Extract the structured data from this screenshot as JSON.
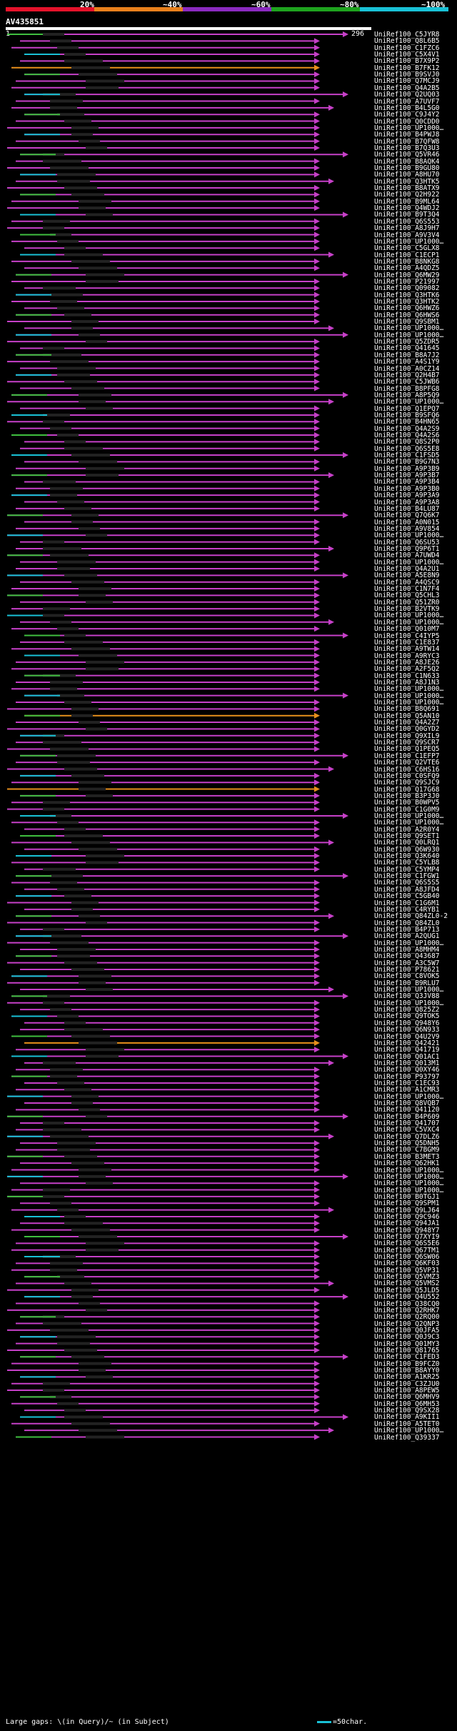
{
  "legend": {
    "labels": [
      "20%",
      "~40%",
      "~60%",
      "~80%",
      "~100%"
    ],
    "colors": [
      "#e5122a",
      "#e8801c",
      "#8b2ac0",
      "#1ea31e",
      "#19c1d6"
    ]
  },
  "query": {
    "name": "AV435851",
    "start": "1",
    "end": "296"
  },
  "footer": {
    "gaps_note": "Large gaps: \\(in Query)/~ (in Subject)",
    "scale_note": "=50char."
  },
  "colors": {
    "magenta": "#c640c8",
    "green": "#3fbf3f",
    "cyan": "#19c1d6",
    "orange": "#e8901c"
  },
  "hits": [
    {
      "label": "UniRef100_C5JYR8",
      "color": "magenta"
    },
    {
      "label": "UniRef100_Q8L6B5",
      "color": "magenta"
    },
    {
      "label": "UniRef100_C1FZC6",
      "color": "magenta"
    },
    {
      "label": "UniRef100_C5X4V1",
      "color": "magenta"
    },
    {
      "label": "UniRef100_B7X9P2",
      "color": "magenta"
    },
    {
      "label": "UniRef100_B7FK12",
      "color": "orange"
    },
    {
      "label": "UniRef100_B9SVJ0",
      "color": "magenta"
    },
    {
      "label": "UniRef100_Q7MCJ9",
      "color": "magenta"
    },
    {
      "label": "UniRef100_Q4A2B5",
      "color": "magenta"
    },
    {
      "label": "UniRef100_Q2UQ03",
      "color": "magenta"
    },
    {
      "label": "UniRef100_A7UVF7",
      "color": "magenta"
    },
    {
      "label": "UniRef100_B4L5G0",
      "color": "magenta"
    },
    {
      "label": "UniRef100_C9J4Y2",
      "color": "magenta"
    },
    {
      "label": "UniRef100_Q0CDD0",
      "color": "magenta"
    },
    {
      "label": "UniRef100_UP1000…",
      "color": "magenta"
    },
    {
      "label": "UniRef100_B4PWJ8",
      "color": "magenta"
    },
    {
      "label": "UniRef100_B7QFW8",
      "color": "magenta"
    },
    {
      "label": "UniRef100_B7Q3U3",
      "color": "magenta"
    },
    {
      "label": "UniRef100_Q5VR46",
      "color": "magenta"
    },
    {
      "label": "UniRef100_B8AQK4",
      "color": "magenta"
    },
    {
      "label": "UniRef100_B9GU80",
      "color": "magenta"
    },
    {
      "label": "UniRef100_A8HU70",
      "color": "magenta"
    },
    {
      "label": "UniRef100_Q3HTK5",
      "color": "magenta"
    },
    {
      "label": "UniRef100_B8ATX9",
      "color": "magenta"
    },
    {
      "label": "UniRef100_Q2H922",
      "color": "magenta"
    },
    {
      "label": "UniRef100_B9ML64",
      "color": "magenta"
    },
    {
      "label": "UniRef100_Q4WDJ2",
      "color": "magenta"
    },
    {
      "label": "UniRef100_B9T3Q4",
      "color": "magenta"
    },
    {
      "label": "UniRef100_Q6S553",
      "color": "magenta"
    },
    {
      "label": "UniRef100_A8J9H7",
      "color": "magenta"
    },
    {
      "label": "UniRef100_A9V3V4",
      "color": "magenta"
    },
    {
      "label": "UniRef100_UP1000…",
      "color": "magenta"
    },
    {
      "label": "UniRef100_C5GLX8",
      "color": "magenta"
    },
    {
      "label": "UniRef100_C1ECP1",
      "color": "magenta"
    },
    {
      "label": "UniRef100_B8NKG8",
      "color": "magenta"
    },
    {
      "label": "UniRef100_A4QDZ5",
      "color": "magenta"
    },
    {
      "label": "UniRef100_Q6MW29",
      "color": "magenta"
    },
    {
      "label": "UniRef100_P21997",
      "color": "magenta"
    },
    {
      "label": "UniRef100_Q09082",
      "color": "magenta"
    },
    {
      "label": "UniRef100_Q3HTK6",
      "color": "magenta"
    },
    {
      "label": "UniRef100_Q3HTK2",
      "color": "magenta"
    },
    {
      "label": "UniRef100_Q6HWZ6",
      "color": "magenta"
    },
    {
      "label": "UniRef100_Q6HWS6",
      "color": "magenta"
    },
    {
      "label": "UniRef100_Q9SBM1",
      "color": "magenta"
    },
    {
      "label": "UniRef100_UP1000…",
      "color": "magenta"
    },
    {
      "label": "UniRef100_UP1000…",
      "color": "magenta"
    },
    {
      "label": "UniRef100_Q5ZDR5",
      "color": "magenta"
    },
    {
      "label": "UniRef100_Q41645",
      "color": "magenta"
    },
    {
      "label": "UniRef100_B8A7J2",
      "color": "magenta"
    },
    {
      "label": "UniRef100_A4S1Y9",
      "color": "magenta"
    },
    {
      "label": "UniRef100_A0CZ14",
      "color": "magenta"
    },
    {
      "label": "UniRef100_Q2H4B7",
      "color": "magenta"
    },
    {
      "label": "UniRef100_C5JWB6",
      "color": "magenta"
    },
    {
      "label": "UniRef100_B8PFG8",
      "color": "magenta"
    },
    {
      "label": "UniRef100_A8P5Q9",
      "color": "magenta"
    },
    {
      "label": "UniRef100_UP1000…",
      "color": "magenta"
    },
    {
      "label": "UniRef100_Q1EPQ7",
      "color": "magenta"
    },
    {
      "label": "UniRef100_B9SFQ6",
      "color": "magenta"
    },
    {
      "label": "UniRef100_B4HN65",
      "color": "magenta"
    },
    {
      "label": "UniRef100_Q4A2S9",
      "color": "magenta"
    },
    {
      "label": "UniRef100_Q4A2S6",
      "color": "magenta"
    },
    {
      "label": "UniRef100_Q8S2P0",
      "color": "magenta"
    },
    {
      "label": "UniRef100_Q6S5E8",
      "color": "magenta"
    },
    {
      "label": "UniRef100_C1FSD5",
      "color": "magenta"
    },
    {
      "label": "UniRef100_B9G7N3",
      "color": "magenta"
    },
    {
      "label": "UniRef100_A9P3B9",
      "color": "magenta"
    },
    {
      "label": "UniRef100_A9P3B7",
      "color": "magenta"
    },
    {
      "label": "UniRef100_A9P3B4",
      "color": "magenta"
    },
    {
      "label": "UniRef100_A9P3B0",
      "color": "magenta"
    },
    {
      "label": "UniRef100_A9P3A9",
      "color": "magenta"
    },
    {
      "label": "UniRef100_A9P3A8",
      "color": "magenta"
    },
    {
      "label": "UniRef100_B4LU87",
      "color": "magenta"
    },
    {
      "label": "UniRef100_Q7Q6K7",
      "color": "magenta"
    },
    {
      "label": "UniRef100_A0N015",
      "color": "magenta"
    },
    {
      "label": "UniRef100_A9V854",
      "color": "magenta"
    },
    {
      "label": "UniRef100_UP1000…",
      "color": "magenta"
    },
    {
      "label": "UniRef100_Q6SU53",
      "color": "magenta"
    },
    {
      "label": "UniRef100_Q9P6T1",
      "color": "magenta"
    },
    {
      "label": "UniRef100_A7UWD4",
      "color": "magenta"
    },
    {
      "label": "UniRef100_UP1000…",
      "color": "magenta"
    },
    {
      "label": "UniRef100_Q4A2U1",
      "color": "magenta"
    },
    {
      "label": "UniRef100_A5E8N9",
      "color": "magenta"
    },
    {
      "label": "UniRef100_A4QSC9",
      "color": "magenta"
    },
    {
      "label": "UniRef100_C1N7F4",
      "color": "magenta"
    },
    {
      "label": "UniRef100_Q5CHL3",
      "color": "magenta"
    },
    {
      "label": "UniRef100_Q51ZR0",
      "color": "magenta"
    },
    {
      "label": "UniRef100_B2VTK9",
      "color": "magenta"
    },
    {
      "label": "UniRef100_UP1000…",
      "color": "magenta"
    },
    {
      "label": "UniRef100_UP1000…",
      "color": "magenta"
    },
    {
      "label": "UniRef100_Q010M7",
      "color": "magenta"
    },
    {
      "label": "UniRef100_C4IYP5",
      "color": "magenta"
    },
    {
      "label": "UniRef100_C1E837",
      "color": "magenta"
    },
    {
      "label": "UniRef100_A9TW14",
      "color": "magenta"
    },
    {
      "label": "UniRef100_A9RYC3",
      "color": "magenta"
    },
    {
      "label": "UniRef100_A8JE26",
      "color": "magenta"
    },
    {
      "label": "UniRef100_A2F5Q2",
      "color": "magenta"
    },
    {
      "label": "UniRef100_C1N633",
      "color": "magenta"
    },
    {
      "label": "UniRef100_A8J1N3",
      "color": "magenta"
    },
    {
      "label": "UniRef100_UP1000…",
      "color": "magenta"
    },
    {
      "label": "UniRef100_UP1000…",
      "color": "magenta"
    },
    {
      "label": "UniRef100_UP1000…",
      "color": "magenta"
    },
    {
      "label": "UniRef100_B8Q691",
      "color": "magenta"
    },
    {
      "label": "UniRef100_Q5AN10",
      "color": "orange"
    },
    {
      "label": "UniRef100_Q4A2Z7",
      "color": "magenta"
    },
    {
      "label": "UniRef100_Q0GYD2",
      "color": "magenta"
    },
    {
      "label": "UniRef100_Q9XIL9",
      "color": "magenta"
    },
    {
      "label": "UniRef100_Q9SCR7",
      "color": "magenta"
    },
    {
      "label": "UniRef100_Q1PEQ5",
      "color": "magenta"
    },
    {
      "label": "UniRef100_C1EFP7",
      "color": "magenta"
    },
    {
      "label": "UniRef100_Q2VTE6",
      "color": "magenta"
    },
    {
      "label": "UniRef100_C6HS16",
      "color": "magenta"
    },
    {
      "label": "UniRef100_C0SFQ9",
      "color": "magenta"
    },
    {
      "label": "UniRef100_Q9SJC9",
      "color": "magenta"
    },
    {
      "label": "UniRef100_Q17G68",
      "color": "orange"
    },
    {
      "label": "UniRef100_B3P3J0",
      "color": "magenta"
    },
    {
      "label": "UniRef100_B0WPV5",
      "color": "magenta"
    },
    {
      "label": "UniRef100_C1G0M9",
      "color": "magenta"
    },
    {
      "label": "UniRef100_UP1000…",
      "color": "magenta"
    },
    {
      "label": "UniRef100_UP1000…",
      "color": "magenta"
    },
    {
      "label": "UniRef100_A2R0Y4",
      "color": "magenta"
    },
    {
      "label": "UniRef100_Q9SET1",
      "color": "magenta"
    },
    {
      "label": "UniRef100_Q0LRQ1",
      "color": "magenta"
    },
    {
      "label": "UniRef100_Q6W930",
      "color": "magenta"
    },
    {
      "label": "UniRef100_Q3K640",
      "color": "magenta"
    },
    {
      "label": "UniRef100_C5YLB8",
      "color": "magenta"
    },
    {
      "label": "UniRef100_C5YMP4",
      "color": "magenta"
    },
    {
      "label": "UniRef100_C1FGW1",
      "color": "magenta"
    },
    {
      "label": "UniRef100_Q6S5S5",
      "color": "magenta"
    },
    {
      "label": "UniRef100_A8JFD4",
      "color": "magenta"
    },
    {
      "label": "UniRef100_C5GB40",
      "color": "magenta"
    },
    {
      "label": "UniRef100_C1G6M1",
      "color": "magenta"
    },
    {
      "label": "UniRef100_C4RYB1",
      "color": "magenta"
    },
    {
      "label": "UniRef100_Q84ZL0-2",
      "color": "magenta"
    },
    {
      "label": "UniRef100_Q84ZL0",
      "color": "magenta"
    },
    {
      "label": "UniRef100_B4P713",
      "color": "magenta"
    },
    {
      "label": "UniRef100_A2QUG1",
      "color": "magenta"
    },
    {
      "label": "UniRef100_UP1000…",
      "color": "magenta"
    },
    {
      "label": "UniRef100_A8MHM4",
      "color": "magenta"
    },
    {
      "label": "UniRef100_Q43687",
      "color": "magenta"
    },
    {
      "label": "UniRef100_A3C5W7",
      "color": "magenta"
    },
    {
      "label": "UniRef100_P78621",
      "color": "magenta"
    },
    {
      "label": "UniRef100_C8VOK5",
      "color": "magenta"
    },
    {
      "label": "UniRef100_B9RLU7",
      "color": "magenta"
    },
    {
      "label": "UniRef100_UP1000…",
      "color": "magenta"
    },
    {
      "label": "UniRef100_Q3JV88",
      "color": "magenta"
    },
    {
      "label": "UniRef100_UP1000…",
      "color": "magenta"
    },
    {
      "label": "UniRef100_Q825Z2",
      "color": "magenta"
    },
    {
      "label": "UniRef100_Q9TOK5",
      "color": "magenta"
    },
    {
      "label": "UniRef100_Q948Y6",
      "color": "magenta"
    },
    {
      "label": "UniRef100_Q6N933",
      "color": "magenta"
    },
    {
      "label": "UniRef100_Q4U2V9",
      "color": "magenta"
    },
    {
      "label": "UniRef100_Q42421",
      "color": "orange"
    },
    {
      "label": "UniRef100_Q41719",
      "color": "magenta"
    },
    {
      "label": "UniRef100_Q01AC1",
      "color": "magenta"
    },
    {
      "label": "UniRef100_Q013M1",
      "color": "magenta"
    },
    {
      "label": "UniRef100_Q0XY46",
      "color": "magenta"
    },
    {
      "label": "UniRef100_P93797",
      "color": "magenta"
    },
    {
      "label": "UniRef100_C1EC93",
      "color": "magenta"
    },
    {
      "label": "UniRef100_A1CMR3",
      "color": "magenta"
    },
    {
      "label": "UniRef100_UP1000…",
      "color": "magenta"
    },
    {
      "label": "UniRef100_Q8VQB7",
      "color": "magenta"
    },
    {
      "label": "UniRef100_Q41120",
      "color": "magenta"
    },
    {
      "label": "UniRef100_B4P609",
      "color": "magenta"
    },
    {
      "label": "UniRef100_Q41707",
      "color": "magenta"
    },
    {
      "label": "UniRef100_C5VXC4",
      "color": "magenta"
    },
    {
      "label": "UniRef100_Q7DLZ6",
      "color": "magenta"
    },
    {
      "label": "UniRef100_Q5DNH5",
      "color": "magenta"
    },
    {
      "label": "UniRef100_C7BGM9",
      "color": "magenta"
    },
    {
      "label": "UniRef100_B3MET3",
      "color": "magenta"
    },
    {
      "label": "UniRef100_Q62HK1",
      "color": "magenta"
    },
    {
      "label": "UniRef100_UP1000…",
      "color": "magenta"
    },
    {
      "label": "UniRef100_UP1000…",
      "color": "magenta"
    },
    {
      "label": "UniRef100_UP1000…",
      "color": "magenta"
    },
    {
      "label": "UniRef100_UP1000…",
      "color": "magenta"
    },
    {
      "label": "UniRef100_B0TGJ1",
      "color": "magenta"
    },
    {
      "label": "UniRef100_Q9SPM1",
      "color": "magenta"
    },
    {
      "label": "UniRef100_Q9LJ64",
      "color": "magenta"
    },
    {
      "label": "UniRef100_Q9C946",
      "color": "magenta"
    },
    {
      "label": "UniRef100_Q94JA1",
      "color": "magenta"
    },
    {
      "label": "UniRef100_Q948Y7",
      "color": "magenta"
    },
    {
      "label": "UniRef100_Q7XYI9",
      "color": "magenta"
    },
    {
      "label": "UniRef100_Q6S5E6",
      "color": "magenta"
    },
    {
      "label": "UniRef100_Q67TM1",
      "color": "magenta"
    },
    {
      "label": "UniRef100_Q6SW06",
      "color": "magenta"
    },
    {
      "label": "UniRef100_Q6KF03",
      "color": "magenta"
    },
    {
      "label": "UniRef100_Q5VP31",
      "color": "magenta"
    },
    {
      "label": "UniRef100_Q5VMZ3",
      "color": "magenta"
    },
    {
      "label": "UniRef100_Q5VMS2",
      "color": "magenta"
    },
    {
      "label": "UniRef100_Q5JLD5",
      "color": "magenta"
    },
    {
      "label": "UniRef100_Q4U552",
      "color": "magenta"
    },
    {
      "label": "UniRef100_Q38CQ0",
      "color": "magenta"
    },
    {
      "label": "UniRef100_Q2RHK7",
      "color": "magenta"
    },
    {
      "label": "UniRef100_Q2RQ00",
      "color": "magenta"
    },
    {
      "label": "UniRef100_Q2QNP3",
      "color": "magenta"
    },
    {
      "label": "UniRef100_Q0JFA5",
      "color": "magenta"
    },
    {
      "label": "UniRef100_Q0J9C3",
      "color": "magenta"
    },
    {
      "label": "UniRef100_Q01MY3",
      "color": "magenta"
    },
    {
      "label": "UniRef100_Q81765",
      "color": "magenta"
    },
    {
      "label": "UniRef100_C1FED3",
      "color": "magenta"
    },
    {
      "label": "UniRef100_B9FCZ0",
      "color": "magenta"
    },
    {
      "label": "UniRef100_B8AYY0",
      "color": "magenta"
    },
    {
      "label": "UniRef100_A1KR25",
      "color": "magenta"
    },
    {
      "label": "UniRef100_C3ZJU0",
      "color": "magenta"
    },
    {
      "label": "UniRef100_A8PEW5",
      "color": "magenta"
    },
    {
      "label": "UniRef100_Q6MHV9",
      "color": "magenta"
    },
    {
      "label": "UniRef100_Q6MH53",
      "color": "magenta"
    },
    {
      "label": "UniRef100_Q9SX28",
      "color": "magenta"
    },
    {
      "label": "UniRef100_A9KII1",
      "color": "magenta"
    },
    {
      "label": "UniRef100_A5TET0",
      "color": "magenta"
    },
    {
      "label": "UniRef100_UP1000…",
      "color": "magenta"
    },
    {
      "label": "UniRef100_Q39337",
      "color": "magenta"
    }
  ]
}
